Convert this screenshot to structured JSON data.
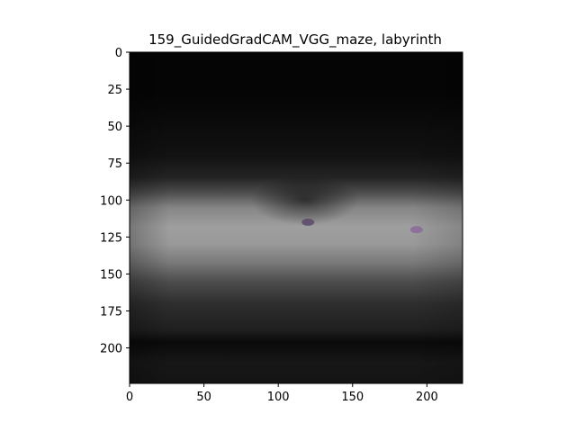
{
  "chart_data": {
    "type": "heatmap",
    "title": "159_GuidedGradCAM_VGG_maze, labyrinth",
    "xlabel": "",
    "ylabel": "",
    "x_ticks": [
      0,
      50,
      100,
      150,
      200
    ],
    "y_ticks": [
      0,
      25,
      50,
      75,
      100,
      125,
      150,
      175,
      200
    ],
    "xlim": [
      0,
      224
    ],
    "ylim": [
      224,
      0
    ],
    "grid": false,
    "colormap": "grayscale",
    "intensity_profile_by_row": [
      {
        "y": 0,
        "v": 0.02
      },
      {
        "y": 30,
        "v": 0.02
      },
      {
        "y": 70,
        "v": 0.07
      },
      {
        "y": 85,
        "v": 0.14
      },
      {
        "y": 95,
        "v": 0.3
      },
      {
        "y": 105,
        "v": 0.52
      },
      {
        "y": 118,
        "v": 0.62
      },
      {
        "y": 130,
        "v": 0.6
      },
      {
        "y": 142,
        "v": 0.48
      },
      {
        "y": 155,
        "v": 0.3
      },
      {
        "y": 170,
        "v": 0.18
      },
      {
        "y": 188,
        "v": 0.12
      },
      {
        "y": 196,
        "v": 0.04
      },
      {
        "y": 210,
        "v": 0.09
      },
      {
        "y": 224,
        "v": 0.08
      }
    ],
    "highlights": [
      {
        "x": 120,
        "y": 115,
        "color": "#5a4a6a"
      },
      {
        "x": 193,
        "y": 120,
        "color": "#8a6a9a"
      }
    ]
  }
}
